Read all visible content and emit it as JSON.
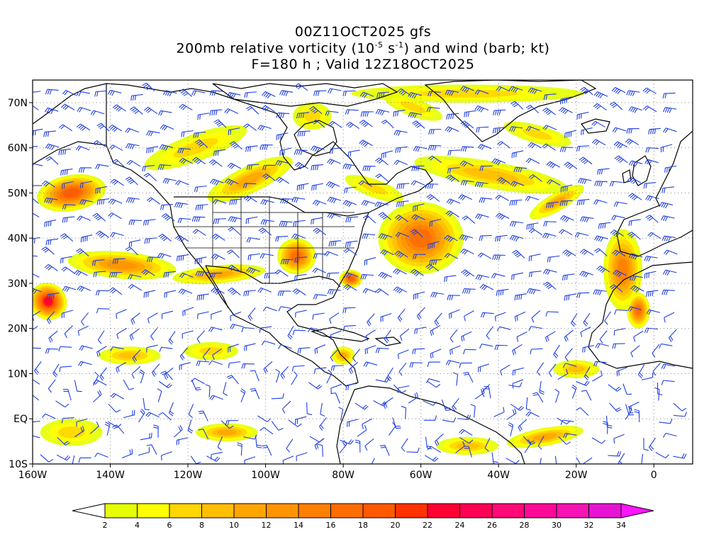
{
  "header": {
    "run_label": "00Z11OCT2025 gfs",
    "field_prefix": "200mb relative vorticity (10",
    "field_exp1": "-5",
    "field_mid": " s",
    "field_exp2": "-1",
    "field_suffix": ") and wind (barb; kt)",
    "forecast_label": "F=180 h ; Valid 12Z18OCT2025"
  },
  "map": {
    "lon_range": [
      -160,
      10
    ],
    "lat_range": [
      -10,
      75
    ],
    "x_ticks": [
      {
        "lon": -160,
        "label": "160W"
      },
      {
        "lon": -140,
        "label": "140W"
      },
      {
        "lon": -120,
        "label": "120W"
      },
      {
        "lon": -100,
        "label": "100W"
      },
      {
        "lon": -80,
        "label": "80W"
      },
      {
        "lon": -60,
        "label": "60W"
      },
      {
        "lon": -40,
        "label": "40W"
      },
      {
        "lon": -20,
        "label": "20W"
      },
      {
        "lon": 0,
        "label": "0"
      }
    ],
    "y_ticks": [
      {
        "lat": 70,
        "label": "70N"
      },
      {
        "lat": 60,
        "label": "60N"
      },
      {
        "lat": 50,
        "label": "50N"
      },
      {
        "lat": 40,
        "label": "40N"
      },
      {
        "lat": 30,
        "label": "30N"
      },
      {
        "lat": 20,
        "label": "20N"
      },
      {
        "lat": 10,
        "label": "10N"
      },
      {
        "lat": 0,
        "label": "EQ"
      },
      {
        "lat": -10,
        "label": "10S"
      }
    ],
    "grid": true,
    "barb_color": "#1f3fe0",
    "coast_color": "#000000",
    "vorticity_features": [
      {
        "lon": -118,
        "lat": 60,
        "value": 7,
        "rx": 14,
        "ry": 3,
        "rot": 20
      },
      {
        "lon": -104,
        "lat": 53,
        "value": 10,
        "rx": 12,
        "ry": 3,
        "rot": 25
      },
      {
        "lon": -150,
        "lat": 50,
        "value": 18,
        "rx": 9,
        "ry": 4,
        "rot": 10
      },
      {
        "lon": -92,
        "lat": 36,
        "value": 16,
        "rx": 5,
        "ry": 4,
        "rot": 0
      },
      {
        "lon": -137,
        "lat": 34,
        "value": 12,
        "rx": 14,
        "ry": 3,
        "rot": -5
      },
      {
        "lon": -112,
        "lat": 32,
        "value": 10,
        "rx": 12,
        "ry": 2,
        "rot": 5
      },
      {
        "lon": -156,
        "lat": 26,
        "value": 22,
        "rx": 5,
        "ry": 4,
        "rot": -40
      },
      {
        "lon": -60,
        "lat": 40,
        "value": 16,
        "rx": 11,
        "ry": 8,
        "rot": 0
      },
      {
        "lon": -78,
        "lat": 31,
        "value": 18,
        "rx": 3,
        "ry": 2,
        "rot": 0
      },
      {
        "lon": -72,
        "lat": 51,
        "value": 6,
        "rx": 8,
        "ry": 2,
        "rot": -20
      },
      {
        "lon": -42,
        "lat": 54,
        "value": 8,
        "rx": 20,
        "ry": 3,
        "rot": -10
      },
      {
        "lon": -25,
        "lat": 48,
        "value": 10,
        "rx": 8,
        "ry": 2,
        "rot": 30
      },
      {
        "lon": -8,
        "lat": 33,
        "value": 14,
        "rx": 5,
        "ry": 9,
        "rot": 0
      },
      {
        "lon": -4,
        "lat": 24,
        "value": 16,
        "rx": 3,
        "ry": 4,
        "rot": 0
      },
      {
        "lon": -48,
        "lat": 72,
        "value": 6,
        "rx": 30,
        "ry": 2,
        "rot": 0
      },
      {
        "lon": -62,
        "lat": 69,
        "value": 6,
        "rx": 8,
        "ry": 2,
        "rot": -20
      },
      {
        "lon": -135,
        "lat": 14,
        "value": 8,
        "rx": 8,
        "ry": 2,
        "rot": 0
      },
      {
        "lon": -114,
        "lat": 15,
        "value": 6,
        "rx": 7,
        "ry": 2,
        "rot": 0
      },
      {
        "lon": -80,
        "lat": 14,
        "value": 10,
        "rx": 3,
        "ry": 2,
        "rot": 0
      },
      {
        "lon": -110,
        "lat": -3,
        "value": 10,
        "rx": 8,
        "ry": 2,
        "rot": 0
      },
      {
        "lon": -48,
        "lat": -6,
        "value": 8,
        "rx": 8,
        "ry": 2,
        "rot": 0
      },
      {
        "lon": -28,
        "lat": -4,
        "value": 10,
        "rx": 10,
        "ry": 2,
        "rot": 10
      },
      {
        "lon": -150,
        "lat": -3,
        "value": 6,
        "rx": 8,
        "ry": 3,
        "rot": 0
      },
      {
        "lon": -20,
        "lat": 11,
        "value": 8,
        "rx": 6,
        "ry": 2,
        "rot": 0
      },
      {
        "lon": -88,
        "lat": 67,
        "value": 6,
        "rx": 5,
        "ry": 3,
        "rot": 0
      },
      {
        "lon": -30,
        "lat": 63,
        "value": 6,
        "rx": 9,
        "ry": 2,
        "rot": -15
      }
    ]
  },
  "colorbar": {
    "levels": [
      2,
      4,
      6,
      8,
      10,
      12,
      14,
      16,
      18,
      20,
      22,
      24,
      26,
      28,
      30,
      32,
      34
    ],
    "labels": [
      "2",
      "4",
      "6",
      "8",
      "10",
      "12",
      "14",
      "16",
      "18",
      "20",
      "22",
      "24",
      "26",
      "28",
      "30",
      "32",
      "34"
    ],
    "colors": [
      "#e6ff00",
      "#ffff00",
      "#ffd600",
      "#ffbf00",
      "#ffa500",
      "#ff9400",
      "#ff8000",
      "#ff6d00",
      "#ff5a00",
      "#ff3200",
      "#ff0032",
      "#ff0055",
      "#ff0a78",
      "#ff0a96",
      "#f514b4",
      "#e614d2"
    ],
    "under_color": "#ffffff",
    "over_color": "#ff14ff"
  }
}
